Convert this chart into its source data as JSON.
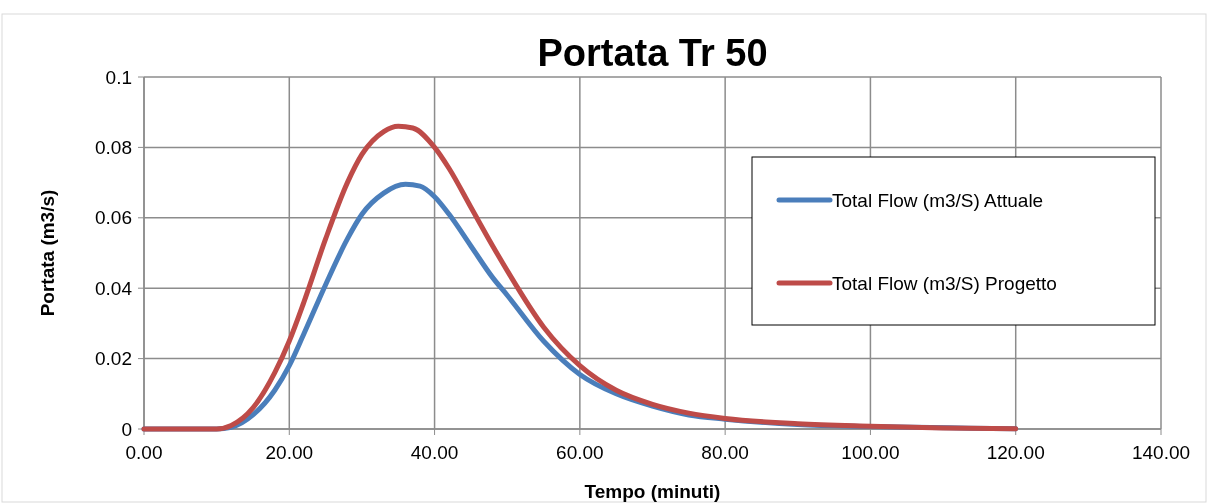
{
  "chart_data": {
    "type": "line",
    "title": "Portata Tr 50",
    "xlabel": "Tempo (minuti)",
    "ylabel": "Portata (m3/s)",
    "xlim": [
      0,
      140
    ],
    "xticks": [
      {
        "value": 0,
        "label": "0.00"
      },
      {
        "value": 20,
        "label": "20.00"
      },
      {
        "value": 40,
        "label": "40.00"
      },
      {
        "value": 60,
        "label": "60.00"
      },
      {
        "value": 80,
        "label": "80.00"
      },
      {
        "value": 100,
        "label": "100.00"
      },
      {
        "value": 120,
        "label": "120.00"
      },
      {
        "value": 140,
        "label": "140.00"
      }
    ],
    "ylim": [
      0,
      0.1
    ],
    "yticks": [
      0,
      0.02,
      0.04,
      0.06,
      0.08,
      0.1
    ],
    "grid": true,
    "legend": "right",
    "marker": "none",
    "line_style": "solid",
    "series": [
      {
        "name": "Total Flow (m3/S) Attuale",
        "color": "#4a7ebb",
        "x": [
          0,
          5,
          10,
          12,
          15,
          18,
          20,
          22,
          25,
          28,
          30,
          33,
          36,
          38,
          40,
          42,
          45,
          48,
          50,
          55,
          60,
          65,
          70,
          75,
          80,
          90,
          100,
          120
        ],
        "values": [
          0,
          0,
          0,
          0.0005,
          0.004,
          0.011,
          0.018,
          0.027,
          0.041,
          0.054,
          0.061,
          0.067,
          0.0695,
          0.069,
          0.066,
          0.061,
          0.052,
          0.043,
          0.038,
          0.025,
          0.0155,
          0.01,
          0.0065,
          0.004,
          0.0028,
          0.0013,
          0.0007,
          0.0001
        ]
      },
      {
        "name": "Total Flow (m3/S) Progetto",
        "color": "#be4b48",
        "x": [
          0,
          5,
          10,
          12,
          15,
          18,
          20,
          22,
          25,
          28,
          30,
          33,
          35,
          37,
          40,
          42,
          45,
          48,
          50,
          55,
          60,
          65,
          70,
          75,
          80,
          90,
          100,
          110,
          120
        ],
        "values": [
          0,
          0,
          0,
          0.001,
          0.006,
          0.016,
          0.025,
          0.036,
          0.054,
          0.07,
          0.078,
          0.0845,
          0.086,
          0.0855,
          0.08,
          0.074,
          0.063,
          0.052,
          0.045,
          0.029,
          0.018,
          0.011,
          0.007,
          0.0045,
          0.003,
          0.0015,
          0.0008,
          0.0003,
          0.0001
        ]
      }
    ]
  }
}
